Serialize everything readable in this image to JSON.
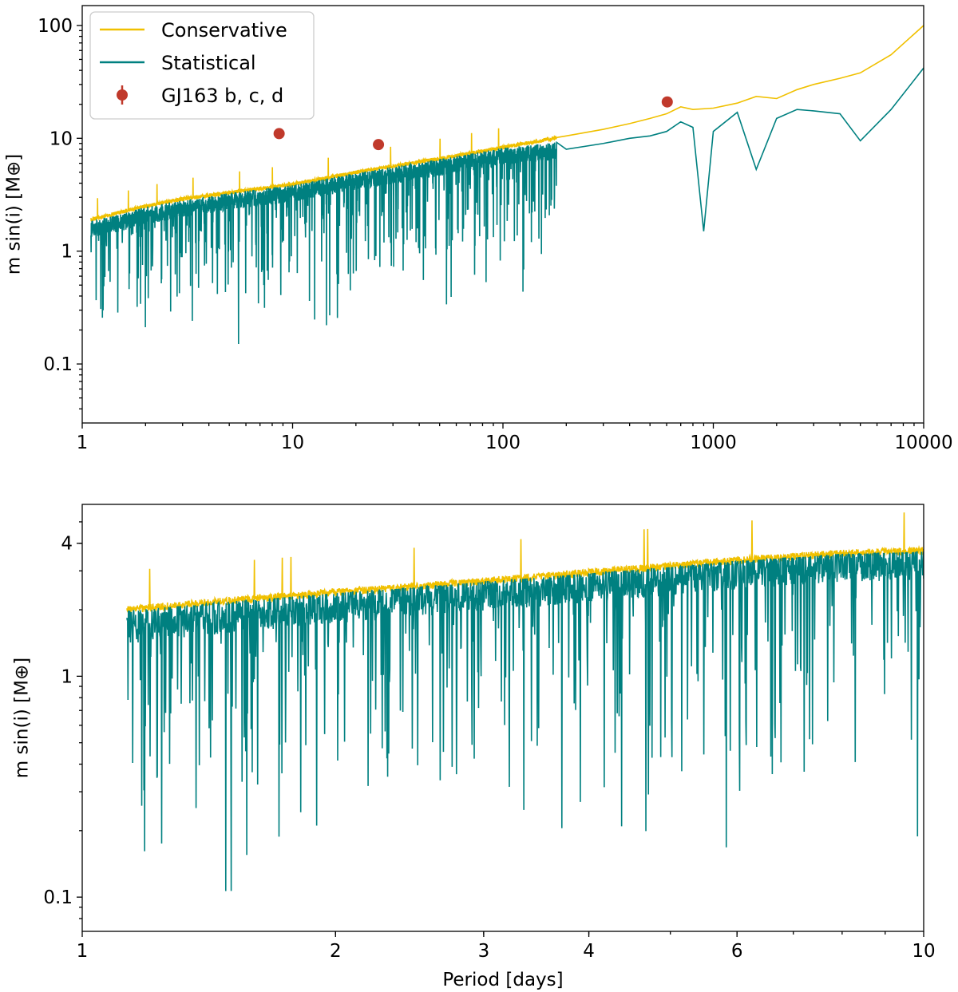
{
  "colors": {
    "conservative": "#f0c000",
    "statistical": "#008080",
    "planets": "#c0392b"
  },
  "chart_data": [
    {
      "type": "line",
      "panel": "top",
      "xscale": "log",
      "yscale": "log",
      "xlim": [
        1,
        10000
      ],
      "ylim": [
        0.03,
        150
      ],
      "xlabel": "",
      "ylabel": "m sin(i) [M⊕]",
      "xticks": [
        {
          "value": 1,
          "label": "1"
        },
        {
          "value": 10,
          "label": "10"
        },
        {
          "value": 100,
          "label": "100"
        },
        {
          "value": 1000,
          "label": "1000"
        },
        {
          "value": 10000,
          "label": "10000"
        }
      ],
      "yticks": [
        {
          "value": 0.1,
          "label": "0.1"
        },
        {
          "value": 1,
          "label": "1"
        },
        {
          "value": 10,
          "label": "10"
        },
        {
          "value": 100,
          "label": "100"
        }
      ],
      "legend_position": "top-left",
      "legend": [
        {
          "label": "Conservative",
          "kind": "line",
          "color_key": "conservative"
        },
        {
          "label": "Statistical",
          "kind": "line",
          "color_key": "statistical"
        },
        {
          "label": "GJ163 b, c, d",
          "kind": "point",
          "color_key": "planets"
        }
      ],
      "series": [
        {
          "name": "Conservative",
          "color_key": "conservative",
          "x": [
            1.1,
            1.5,
            2,
            3,
            5,
            10,
            20,
            50,
            100,
            200,
            300,
            400,
            500,
            600,
            700,
            800,
            1000,
            1300,
            1600,
            2000,
            2500,
            3000,
            4000,
            5000,
            7000,
            10000
          ],
          "y": [
            1.9,
            2.2,
            2.5,
            2.9,
            3.3,
            3.9,
            5.0,
            6.6,
            8.3,
            10.5,
            12.0,
            13.5,
            15.0,
            16.5,
            19.0,
            18.0,
            18.5,
            20.5,
            23.5,
            22.5,
            27.0,
            30.0,
            34.0,
            38.0,
            55.0,
            100.0
          ]
        },
        {
          "name": "Statistical",
          "color_key": "statistical",
          "x": [
            1.1,
            1.5,
            2,
            3,
            5,
            10,
            20,
            50,
            100,
            200,
            300,
            400,
            500,
            600,
            700,
            800,
            900,
            1000,
            1300,
            1600,
            2000,
            2500,
            3000,
            4000,
            5000,
            7000,
            10000
          ],
          "y": [
            1.6,
            1.8,
            2.1,
            2.4,
            2.8,
            3.3,
            4.2,
            5.6,
            7.0,
            8.0,
            9.0,
            10.0,
            10.5,
            11.5,
            14.0,
            12.5,
            1.5,
            11.5,
            17.0,
            5.3,
            15.0,
            18.0,
            17.5,
            16.5,
            9.5,
            18.0,
            42.0
          ]
        }
      ],
      "points": {
        "name": "GJ163 b, c, d",
        "x": [
          8.63,
          25.6,
          604
        ],
        "y": [
          11.0,
          8.8,
          21.0
        ]
      }
    },
    {
      "type": "line",
      "panel": "bottom",
      "xscale": "log",
      "yscale": "log",
      "xlim": [
        1,
        10
      ],
      "ylim": [
        0.07,
        6.0
      ],
      "xlabel": "Period [days]",
      "ylabel": "m sin(i) [M⊕]",
      "xticks": [
        {
          "value": 1,
          "label": "1"
        },
        {
          "value": 2,
          "label": "2"
        },
        {
          "value": 3,
          "label": "3"
        },
        {
          "value": 4,
          "label": "4"
        },
        {
          "value": 6,
          "label": "6"
        },
        {
          "value": 10,
          "label": "10"
        }
      ],
      "yticks": [
        {
          "value": 0.1,
          "label": "0.1"
        },
        {
          "value": 1,
          "label": "1"
        },
        {
          "value": 4,
          "label": "4"
        }
      ],
      "series": [
        {
          "name": "Conservative",
          "color_key": "conservative",
          "x": [
            1.13,
            1.5,
            2,
            2.5,
            3,
            4,
            5,
            6,
            8,
            10
          ],
          "y": [
            2.0,
            2.2,
            2.4,
            2.55,
            2.7,
            2.95,
            3.15,
            3.35,
            3.6,
            3.7
          ]
        },
        {
          "name": "Statistical",
          "color_key": "statistical",
          "x": [
            1.13,
            1.5,
            2,
            2.5,
            3,
            4,
            5,
            6,
            8,
            10
          ],
          "y": [
            1.7,
            1.9,
            2.1,
            2.25,
            2.4,
            2.6,
            2.8,
            3.0,
            3.25,
            3.3
          ]
        }
      ]
    }
  ]
}
